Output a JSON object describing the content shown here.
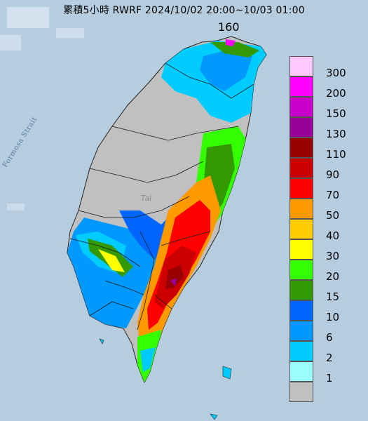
{
  "title": "累積5小時 RWRF 2024/10/02 20:00~10/03 01:00",
  "max_value_label": "160",
  "map_labels": {
    "strait": "Formosa Strait",
    "city": "Tai"
  },
  "legend": {
    "items": [
      {
        "label": "300",
        "color": "#ffc8ff"
      },
      {
        "label": "200",
        "color": "#ff00ff"
      },
      {
        "label": "150",
        "color": "#cc00cc"
      },
      {
        "label": "130",
        "color": "#990099"
      },
      {
        "label": "110",
        "color": "#990000"
      },
      {
        "label": "90",
        "color": "#cc0000"
      },
      {
        "label": "70",
        "color": "#ff0000"
      },
      {
        "label": "50",
        "color": "#ff9900"
      },
      {
        "label": "40",
        "color": "#ffcc00"
      },
      {
        "label": "30",
        "color": "#ffff00"
      },
      {
        "label": "20",
        "color": "#33ff00"
      },
      {
        "label": "15",
        "color": "#339900"
      },
      {
        "label": "10",
        "color": "#0066ff"
      },
      {
        "label": "6",
        "color": "#0099ff"
      },
      {
        "label": "2",
        "color": "#00ccff"
      },
      {
        "label": "1",
        "color": "#99ffff"
      },
      {
        "label": "",
        "color": "#c0c0c0"
      }
    ]
  },
  "colors": {
    "sea": "#b6cde0",
    "land_dry": "#c0c0c0",
    "boundary": "#1a1a1a"
  }
}
